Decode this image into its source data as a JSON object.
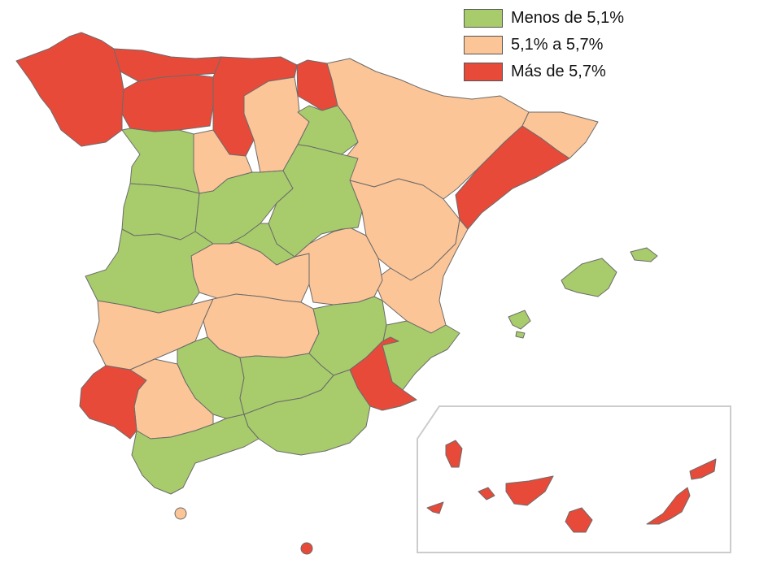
{
  "legend": {
    "items": [
      {
        "label": "Menos de 5,1%",
        "color": "#a8cc6b"
      },
      {
        "label": "5,1% a 5,7%",
        "color": "#fcc597"
      },
      {
        "label": "Más de 5,7%",
        "color": "#e84a3a"
      }
    ]
  },
  "colors": {
    "low": "#a8cc6b",
    "mid": "#fcc597",
    "high": "#e84a3a",
    "border": "#6b6b6b",
    "inset_frame": "#cccccc"
  }
}
